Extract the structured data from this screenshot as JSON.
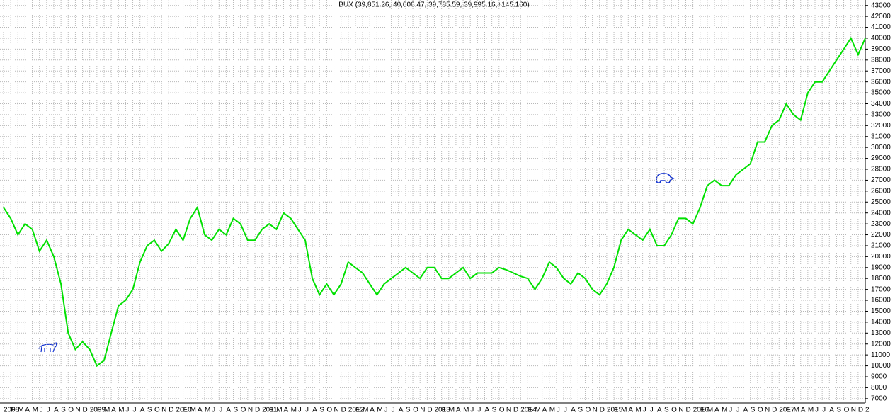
{
  "chart_data": {
    "type": "line",
    "title": "BUX (39,851.26, 40,006.47, 39,785.59, 39,995.16,+145.160)",
    "categories": [
      "2008",
      "F",
      "M",
      "A",
      "M",
      "J",
      "J",
      "A",
      "S",
      "O",
      "N",
      "D",
      "2009",
      "F",
      "M",
      "A",
      "M",
      "J",
      "J",
      "A",
      "S",
      "O",
      "N",
      "D",
      "2010",
      "F",
      "M",
      "A",
      "M",
      "J",
      "J",
      "A",
      "S",
      "O",
      "N",
      "D",
      "2011",
      "F",
      "M",
      "A",
      "M",
      "J",
      "J",
      "A",
      "S",
      "O",
      "N",
      "D",
      "2012",
      "F",
      "M",
      "A",
      "M",
      "J",
      "J",
      "A",
      "S",
      "O",
      "N",
      "D",
      "2013",
      "F",
      "M",
      "A",
      "M",
      "J",
      "J",
      "A",
      "S",
      "O",
      "N",
      "D",
      "2014",
      "F",
      "M",
      "A",
      "M",
      "J",
      "J",
      "A",
      "S",
      "O",
      "N",
      "D",
      "2015",
      "F",
      "M",
      "A",
      "M",
      "J",
      "J",
      "A",
      "S",
      "O",
      "N",
      "D",
      "2016",
      "F",
      "M",
      "A",
      "M",
      "J",
      "J",
      "A",
      "S",
      "O",
      "N",
      "D",
      "2017",
      "F",
      "M",
      "A",
      "M",
      "J",
      "J",
      "A",
      "S",
      "O",
      "N",
      "D",
      "2"
    ],
    "series": [
      {
        "name": "BUX",
        "color": "#00e000",
        "values": [
          24500,
          23500,
          22000,
          23000,
          22500,
          20500,
          21500,
          20000,
          17500,
          13000,
          11500,
          12200,
          11500,
          10000,
          10500,
          13000,
          15500,
          16000,
          17000,
          19500,
          21000,
          21500,
          20500,
          21200,
          22500,
          21500,
          23500,
          24500,
          22000,
          21500,
          22500,
          22000,
          23500,
          23000,
          21500,
          21500,
          22500,
          23000,
          22500,
          24000,
          23500,
          22500,
          21500,
          18000,
          16500,
          17500,
          16500,
          17500,
          19500,
          19000,
          18500,
          17500,
          16500,
          17500,
          18000,
          18500,
          19000,
          18500,
          18000,
          19000,
          19000,
          18000,
          18000,
          18500,
          19000,
          18000,
          18500,
          18500,
          18500,
          19000,
          18800,
          18500,
          18200,
          18000,
          17000,
          18000,
          19500,
          19000,
          18000,
          17500,
          18500,
          18000,
          17000,
          16500,
          17500,
          19000,
          21500,
          22500,
          22000,
          21500,
          22500,
          21000,
          21000,
          22000,
          23500,
          23500,
          23000,
          24500,
          26500,
          27000,
          26500,
          26500,
          27500,
          28000,
          28500,
          30500,
          30500,
          32000,
          32500,
          34000,
          33000,
          32500,
          35000,
          36000,
          36000,
          37000,
          38000,
          39000,
          40000,
          38500,
          40000
        ]
      }
    ],
    "ylim": [
      6600,
      43500
    ],
    "yticks": [
      7000,
      8000,
      9000,
      10000,
      11000,
      12000,
      13000,
      14000,
      15000,
      16000,
      17000,
      18000,
      19000,
      20000,
      21000,
      22000,
      23000,
      24000,
      25000,
      26000,
      27000,
      28000,
      29000,
      30000,
      31000,
      32000,
      33000,
      34000,
      35000,
      36000,
      37000,
      38000,
      39000,
      40000,
      41000,
      42000,
      43000
    ],
    "grid": true
  }
}
